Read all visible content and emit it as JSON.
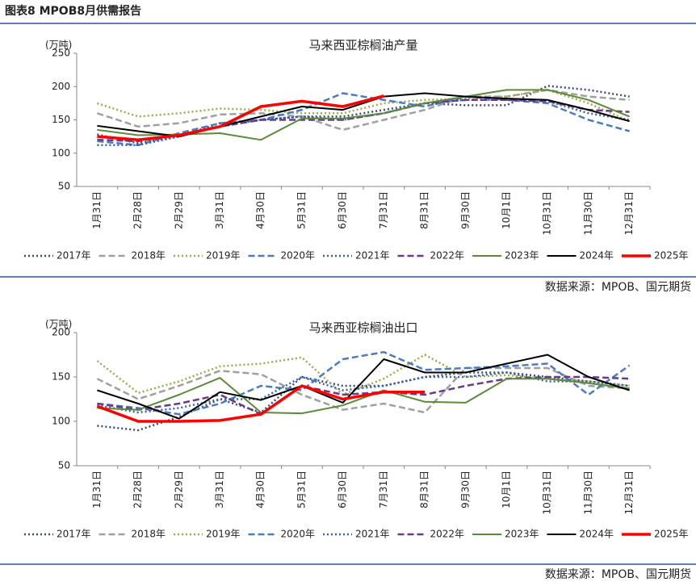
{
  "header": {
    "title": "图表8 MPOB8月供需报告"
  },
  "chart_data": [
    {
      "type": "line",
      "title": "马来西亚棕榈油产量",
      "y_label": "(万吨)",
      "source": "数据来源：MPOB、国元期货",
      "categories": [
        "1月31日",
        "2月28日",
        "2月29日",
        "3月31日",
        "4月30日",
        "5月31日",
        "6月30日",
        "7月31日",
        "8月31日",
        "9月30日",
        "10月1日",
        "10月31日",
        "11月30日",
        "12月31日"
      ],
      "ylim": [
        50,
        250
      ],
      "yticks": [
        50,
        100,
        150,
        200,
        250
      ],
      "series": [
        {
          "name": "2017年",
          "color": "#3b4a7a",
          "line_style": "dotted",
          "values": [
            128,
            115,
            125,
            145,
            150,
            155,
            155,
            165,
            175,
            172,
            172,
            201,
            195,
            185
          ]
        },
        {
          "name": "2018年",
          "color": "#a0a0a0",
          "line_style": "dashed",
          "values": [
            160,
            140,
            145,
            158,
            160,
            155,
            135,
            150,
            165,
            185,
            185,
            195,
            185,
            180
          ]
        },
        {
          "name": "2019年",
          "color": "#a6a84a",
          "line_style": "dotted",
          "values": [
            175,
            155,
            160,
            167,
            165,
            160,
            160,
            175,
            180,
            182,
            185,
            195,
            175,
            148
          ]
        },
        {
          "name": "2020年",
          "color": "#4a7cc4",
          "line_style": "dashed",
          "values": [
            118,
            112,
            130,
            145,
            150,
            165,
            190,
            180,
            170,
            185,
            180,
            175,
            150,
            133
          ]
        },
        {
          "name": "2021年",
          "color": "#3561b0",
          "line_style": "dotted",
          "values": [
            112,
            112,
            125,
            140,
            150,
            155,
            150,
            160,
            175,
            180,
            180,
            178,
            160,
            150
          ]
        },
        {
          "name": "2022年",
          "color": "#6b3a8c",
          "line_style": "dashed",
          "values": [
            120,
            118,
            127,
            140,
            150,
            150,
            150,
            160,
            175,
            180,
            180,
            178,
            165,
            162
          ]
        },
        {
          "name": "2023年",
          "color": "#5a8a3a",
          "line_style": "solid",
          "values": [
            135,
            127,
            128,
            130,
            120,
            152,
            152,
            160,
            175,
            185,
            195,
            195,
            180,
            155
          ]
        },
        {
          "name": "2024年",
          "color": "#000000",
          "line_style": "solid",
          "values": [
            141,
            133,
            125,
            140,
            155,
            170,
            165,
            185,
            190,
            185,
            182,
            180,
            165,
            148
          ]
        },
        {
          "name": "2025年",
          "color": "#ff0000",
          "line_style": "bold",
          "values": [
            125,
            120,
            127,
            140,
            170,
            178,
            170,
            186,
            null,
            null,
            null,
            null,
            null,
            null
          ]
        }
      ]
    },
    {
      "type": "line",
      "title": "马来西亚棕榈油出口",
      "y_label": "(万吨)",
      "source": "数据来源：MPOB、国元期货",
      "categories": [
        "1月31日",
        "2月28日",
        "2月29日",
        "3月31日",
        "4月30日",
        "5月31日",
        "6月30日",
        "7月31日",
        "8月31日",
        "9月30日",
        "10月1日",
        "10月31日",
        "11月30日",
        "12月31日"
      ],
      "ylim": [
        50,
        200
      ],
      "yticks": [
        50,
        100,
        150,
        200
      ],
      "series": [
        {
          "name": "2017年",
          "color": "#3b4a7a",
          "line_style": "dotted",
          "values": [
            95,
            90,
            105,
            125,
            110,
            150,
            140,
            140,
            150,
            155,
            155,
            150,
            145,
            140
          ]
        },
        {
          "name": "2018年",
          "color": "#a0a0a0",
          "line_style": "dashed",
          "values": [
            148,
            125,
            140,
            157,
            153,
            130,
            113,
            120,
            110,
            160,
            160,
            160,
            140,
            137
          ]
        },
        {
          "name": "2019年",
          "color": "#a6a84a",
          "line_style": "dotted",
          "values": [
            168,
            132,
            145,
            162,
            165,
            172,
            130,
            148,
            175,
            150,
            152,
            148,
            145,
            140
          ]
        },
        {
          "name": "2020年",
          "color": "#4a7cc4",
          "line_style": "dashed",
          "values": [
            120,
            115,
            108,
            120,
            140,
            135,
            170,
            178,
            158,
            160,
            162,
            165,
            130,
            163
          ]
        },
        {
          "name": "2021年",
          "color": "#3561b0",
          "line_style": "dotted",
          "values": [
            118,
            110,
            115,
            125,
            125,
            150,
            135,
            140,
            150,
            150,
            155,
            145,
            145,
            140
          ]
        },
        {
          "name": "2022年",
          "color": "#6b3a8c",
          "line_style": "dashed",
          "values": [
            120,
            113,
            120,
            130,
            108,
            140,
            130,
            133,
            130,
            140,
            148,
            150,
            150,
            148
          ]
        },
        {
          "name": "2023年",
          "color": "#5a8a3a",
          "line_style": "solid",
          "values": [
            115,
            113,
            130,
            149,
            110,
            109,
            118,
            135,
            122,
            121,
            148,
            148,
            143,
            137
          ]
        },
        {
          "name": "2024年",
          "color": "#000000",
          "line_style": "solid",
          "values": [
            135,
            120,
            103,
            133,
            124,
            140,
            121,
            170,
            155,
            155,
            165,
            175,
            150,
            135
          ]
        },
        {
          "name": "2025年",
          "color": "#ff0000",
          "line_style": "bold",
          "values": [
            117,
            100,
            100,
            101,
            108,
            140,
            125,
            133,
            133,
            null,
            null,
            null,
            null,
            null
          ]
        }
      ]
    }
  ]
}
